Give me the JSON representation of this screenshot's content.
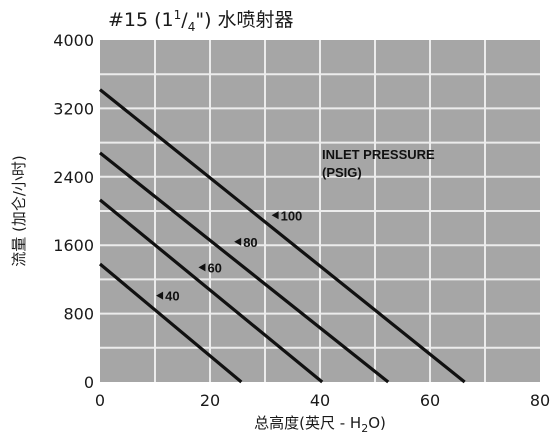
{
  "chart_data": {
    "type": "line",
    "title_main": "#15 (1",
    "title_sup": "1",
    "title_slash": "/",
    "title_sub": "4",
    "title_rest": "\") 水喷射器",
    "xlabel_main": "总高度(英尺 - H",
    "xlabel_sub": "2",
    "xlabel_rest": "O)",
    "ylabel": "流量 (加仑/小时)",
    "xlim": [
      0,
      80
    ],
    "ylim": [
      0,
      4000
    ],
    "x_ticks": [
      "0",
      "20",
      "40",
      "60",
      "80"
    ],
    "y_ticks": [
      "0",
      "800",
      "1600",
      "2400",
      "3200",
      "4000"
    ],
    "grid": true,
    "plot_background": "#a6a6a6",
    "grid_color": "#ececec",
    "line_color": "#111111",
    "annotation": [
      "INLET PRESSURE",
      "(PSIG)"
    ],
    "series": [
      {
        "name": "40",
        "x": [
          0,
          25.7
        ],
        "y": [
          1380,
          0
        ],
        "label_at": [
          10.2,
          1010
        ]
      },
      {
        "name": "60",
        "x": [
          0,
          40.4
        ],
        "y": [
          2130,
          0
        ],
        "label_at": [
          17.9,
          1340
        ]
      },
      {
        "name": "80",
        "x": [
          0,
          52.4
        ],
        "y": [
          2680,
          0
        ],
        "label_at": [
          24.4,
          1640
        ]
      },
      {
        "name": "100",
        "x": [
          0,
          66.3
        ],
        "y": [
          3420,
          0
        ],
        "label_at": [
          31.2,
          1950
        ]
      }
    ]
  }
}
